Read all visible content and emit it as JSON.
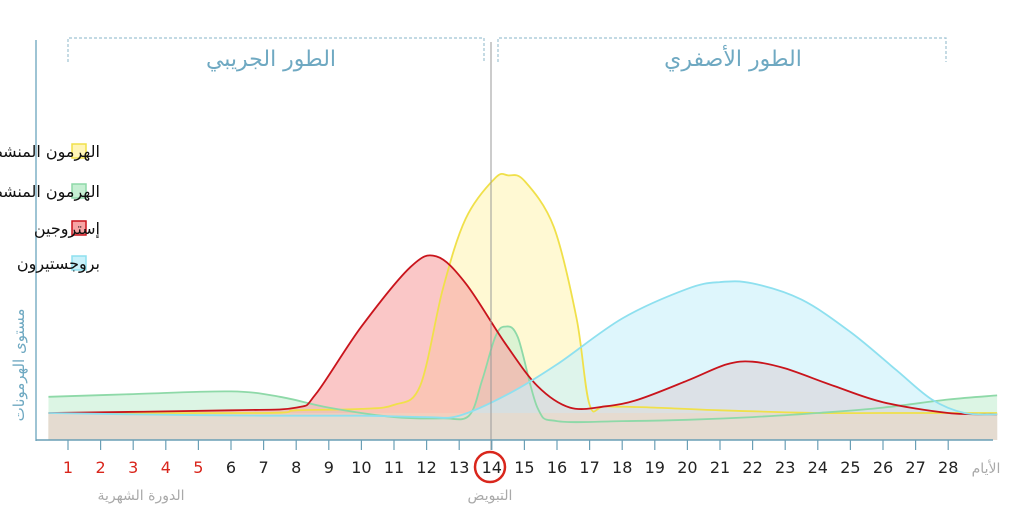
{
  "chart_data": {
    "type": "area",
    "ylabel": "مستوى الهرمونات",
    "xlabel": "الأيام",
    "x": [
      1,
      2,
      3,
      4,
      5,
      6,
      7,
      8,
      9,
      10,
      11,
      12,
      13,
      14,
      15,
      16,
      17,
      18,
      19,
      20,
      21,
      22,
      23,
      24,
      25,
      26,
      27,
      28
    ],
    "xlim": [
      0.4,
      29.5
    ],
    "ylim": [
      0,
      100
    ],
    "grid": false,
    "legend": "top-left",
    "phases": [
      {
        "label": "الطور الجريبي",
        "from": 1,
        "to": 14
      },
      {
        "label": "الطور الأصفري",
        "from": 14,
        "to": 28
      }
    ],
    "menstruation": {
      "label": "الدورة الشهرية",
      "days": [
        1,
        2,
        3,
        4,
        5
      ]
    },
    "ovulation": {
      "label": "التبويض",
      "day": 14
    },
    "series": [
      {
        "name": "الهرمون المنشط للجسم الأصفر",
        "fill": "#fff5b8",
        "stroke": "#f0e04a",
        "points": [
          [
            0.4,
            10
          ],
          [
            7,
            10
          ],
          [
            8,
            11
          ],
          [
            10,
            11.5
          ],
          [
            11,
            13
          ],
          [
            11.8,
            20
          ],
          [
            12.5,
            56
          ],
          [
            13.2,
            82
          ],
          [
            14.1,
            97
          ],
          [
            14.5,
            98
          ],
          [
            15,
            96
          ],
          [
            15.9,
            79
          ],
          [
            16.6,
            45
          ],
          [
            17,
            13
          ],
          [
            17.5,
            12.5
          ],
          [
            19,
            12
          ],
          [
            21,
            11
          ],
          [
            24,
            10
          ],
          [
            26,
            10
          ],
          [
            29.5,
            10
          ]
        ]
      },
      {
        "name": "الهرمون المنشط للحوصلة",
        "fill": "#c6efd3",
        "stroke": "#8ed9a8",
        "points": [
          [
            0.4,
            16
          ],
          [
            3,
            17
          ],
          [
            6,
            18
          ],
          [
            7.5,
            16
          ],
          [
            9,
            12
          ],
          [
            11,
            8.5
          ],
          [
            12.5,
            8
          ],
          [
            13.3,
            9
          ],
          [
            13.7,
            22
          ],
          [
            14.1,
            38
          ],
          [
            14.4,
            42
          ],
          [
            14.8,
            38
          ],
          [
            15.4,
            12
          ],
          [
            16,
            7
          ],
          [
            18,
            7
          ],
          [
            20,
            7.5
          ],
          [
            22,
            8.5
          ],
          [
            24,
            10
          ],
          [
            26,
            12
          ],
          [
            28,
            15
          ],
          [
            29.5,
            16.5
          ]
        ]
      },
      {
        "name": "إستروجين",
        "fill": "#f7a5a5",
        "stroke": "#c9141c",
        "points": [
          [
            0.4,
            10
          ],
          [
            6,
            11
          ],
          [
            8,
            12
          ],
          [
            8.6,
            17
          ],
          [
            10,
            42
          ],
          [
            11.5,
            64
          ],
          [
            12.3,
            68
          ],
          [
            13.2,
            58
          ],
          [
            14.4,
            36
          ],
          [
            15.4,
            20
          ],
          [
            16.4,
            12
          ],
          [
            17.5,
            12.5
          ],
          [
            18.5,
            15
          ],
          [
            20,
            22
          ],
          [
            21.2,
            28
          ],
          [
            22,
            29
          ],
          [
            23,
            26.5
          ],
          [
            24.5,
            20
          ],
          [
            26,
            14
          ],
          [
            28,
            10
          ],
          [
            29.5,
            9.5
          ]
        ]
      },
      {
        "name": "بروجستيرون",
        "fill": "#c9f1fa",
        "stroke": "#8ee0ef",
        "points": [
          [
            0.4,
            10
          ],
          [
            3,
            9.5
          ],
          [
            7,
            9
          ],
          [
            10,
            9
          ],
          [
            12,
            8.5
          ],
          [
            13,
            9
          ],
          [
            14.5,
            17
          ],
          [
            16,
            28
          ],
          [
            18,
            45
          ],
          [
            20,
            56
          ],
          [
            21,
            58.5
          ],
          [
            22,
            58
          ],
          [
            23.5,
            52
          ],
          [
            25,
            40
          ],
          [
            26.4,
            26
          ],
          [
            27.5,
            15
          ],
          [
            28.5,
            10
          ],
          [
            29.5,
            9.5
          ]
        ]
      }
    ],
    "baseline_fill": "#efd7c3"
  }
}
